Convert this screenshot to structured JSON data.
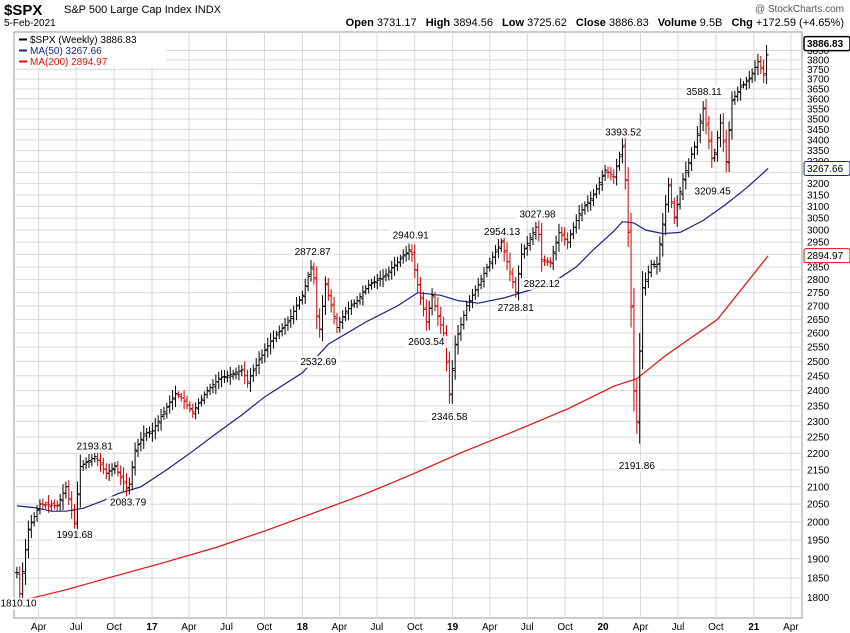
{
  "header": {
    "symbol": "$SPX",
    "description": "S&P 500 Large Cap Index",
    "exchange": "INDX",
    "watermark": "@ StockCharts.com",
    "date": "5-Feb-2021",
    "open_label": "Open",
    "open": "3731.17",
    "high_label": "High",
    "high": "3894.56",
    "low_label": "Low",
    "low": "3725.62",
    "close_label": "Close",
    "close": "3886.83",
    "volume_label": "Volume",
    "volume": "9.5B",
    "chg_label": "Chg",
    "chg": "+172.59 (+4.65%)"
  },
  "colors": {
    "price_bar": "#000000",
    "down_bar": "#cc0000",
    "ma50": "#1a237e",
    "ma200": "#e01010",
    "grid": "#d8d8d8",
    "last_price_tag": "#000000"
  },
  "chart_data": {
    "type": "line",
    "legend": [
      {
        "label": "$SPX (Weekly) 3886.83",
        "color": "#000000"
      },
      {
        "label": "MA(50) 3267.66",
        "color": "#1a237e"
      },
      {
        "label": "MA(200) 2894.97",
        "color": "#e01010"
      }
    ],
    "y_axis": {
      "side": "right",
      "scale": "log",
      "min": 1750,
      "max": 3950,
      "ticks": [
        1800,
        1850,
        1900,
        1950,
        2000,
        2050,
        2100,
        2150,
        2200,
        2250,
        2300,
        2350,
        2400,
        2450,
        2500,
        2550,
        2600,
        2650,
        2700,
        2750,
        2800,
        2850,
        2900,
        2950,
        3000,
        3050,
        3100,
        3150,
        3200,
        3250,
        3300,
        3350,
        3400,
        3450,
        3500,
        3550,
        3600,
        3650,
        3700,
        3750,
        3800,
        3850
      ]
    },
    "x_axis": {
      "labels": [
        "Apr",
        "Jul",
        "Oct",
        "17",
        "Apr",
        "Jul",
        "Oct",
        "18",
        "Apr",
        "Jul",
        "Oct",
        "19",
        "Apr",
        "Jul",
        "Oct",
        "20",
        "Apr",
        "Jul",
        "Oct",
        "21",
        "Apr"
      ],
      "label_dates": [
        "2016-04-01",
        "2016-07-01",
        "2016-10-01",
        "2017-01-01",
        "2017-04-01",
        "2017-07-01",
        "2017-10-01",
        "2018-01-01",
        "2018-04-01",
        "2018-07-01",
        "2018-10-01",
        "2019-01-01",
        "2019-04-01",
        "2019-07-01",
        "2019-10-01",
        "2020-01-01",
        "2020-04-01",
        "2020-07-01",
        "2020-10-01",
        "2021-01-01",
        "2021-04-01"
      ],
      "range": [
        "2016-02-01",
        "2021-04-28"
      ]
    },
    "value_tags": [
      {
        "label": "3886.83",
        "value": 3886.83,
        "style": "last"
      },
      {
        "label": "3267.66",
        "value": 3267.66,
        "style": "ma50"
      },
      {
        "label": "2894.97",
        "value": 2894.97,
        "style": "ma200"
      }
    ],
    "annotations": [
      {
        "label": "1810.10",
        "date": "2016-02-12",
        "value": 1810.1,
        "pos": "below"
      },
      {
        "label": "1991.68",
        "date": "2016-06-27",
        "value": 1991.68,
        "pos": "below"
      },
      {
        "label": "2193.81",
        "date": "2016-08-15",
        "value": 2193.81,
        "pos": "above"
      },
      {
        "label": "2083.79",
        "date": "2016-11-04",
        "value": 2083.79,
        "pos": "below"
      },
      {
        "label": "2872.87",
        "date": "2018-01-26",
        "value": 2872.87,
        "pos": "above"
      },
      {
        "label": "2532.69",
        "date": "2018-02-09",
        "value": 2532.69,
        "pos": "below"
      },
      {
        "label": "2940.91",
        "date": "2018-09-21",
        "value": 2940.91,
        "pos": "above"
      },
      {
        "label": "2603.54",
        "date": "2018-10-29",
        "value": 2603.54,
        "pos": "below"
      },
      {
        "label": "2346.58",
        "date": "2018-12-24",
        "value": 2346.58,
        "pos": "below"
      },
      {
        "label": "2954.13",
        "date": "2019-05-01",
        "value": 2954.13,
        "pos": "above"
      },
      {
        "label": "2728.81",
        "date": "2019-06-03",
        "value": 2728.81,
        "pos": "below"
      },
      {
        "label": "3027.98",
        "date": "2019-07-26",
        "value": 3027.98,
        "pos": "above"
      },
      {
        "label": "2822.12",
        "date": "2019-08-05",
        "value": 2822.12,
        "pos": "below"
      },
      {
        "label": "3393.52",
        "date": "2020-02-19",
        "value": 3393.52,
        "pos": "above"
      },
      {
        "label": "2191.86",
        "date": "2020-03-23",
        "value": 2191.86,
        "pos": "below"
      },
      {
        "label": "3588.11",
        "date": "2020-09-02",
        "value": 3588.11,
        "pos": "above"
      },
      {
        "label": "3209.45",
        "date": "2020-09-23",
        "value": 3209.45,
        "pos": "below"
      }
    ],
    "price_path": [
      [
        "2016-02-08",
        1864
      ],
      [
        "2016-02-15",
        1810
      ],
      [
        "2016-03-07",
        1980
      ],
      [
        "2016-04-04",
        2050
      ],
      [
        "2016-05-16",
        2045
      ],
      [
        "2016-06-06",
        2100
      ],
      [
        "2016-06-27",
        2000
      ],
      [
        "2016-07-11",
        2160
      ],
      [
        "2016-08-15",
        2190
      ],
      [
        "2016-09-12",
        2140
      ],
      [
        "2016-10-03",
        2160
      ],
      [
        "2016-11-04",
        2085
      ],
      [
        "2016-11-21",
        2210
      ],
      [
        "2016-12-12",
        2260
      ],
      [
        "2017-01-02",
        2270
      ],
      [
        "2017-03-01",
        2395
      ],
      [
        "2017-04-10",
        2330
      ],
      [
        "2017-05-15",
        2400
      ],
      [
        "2017-06-12",
        2440
      ],
      [
        "2017-08-07",
        2470
      ],
      [
        "2017-08-21",
        2430
      ],
      [
        "2017-09-18",
        2505
      ],
      [
        "2017-10-16",
        2570
      ],
      [
        "2017-11-27",
        2640
      ],
      [
        "2018-01-01",
        2740
      ],
      [
        "2018-01-26",
        2870
      ],
      [
        "2018-02-09",
        2580
      ],
      [
        "2018-02-26",
        2780
      ],
      [
        "2018-03-26",
        2620
      ],
      [
        "2018-04-16",
        2680
      ],
      [
        "2018-05-14",
        2720
      ],
      [
        "2018-06-11",
        2780
      ],
      [
        "2018-07-16",
        2810
      ],
      [
        "2018-08-20",
        2870
      ],
      [
        "2018-09-21",
        2925
      ],
      [
        "2018-10-08",
        2780
      ],
      [
        "2018-10-29",
        2640
      ],
      [
        "2018-11-12",
        2740
      ],
      [
        "2018-11-26",
        2660
      ],
      [
        "2018-12-10",
        2600
      ],
      [
        "2018-12-24",
        2390
      ],
      [
        "2019-01-07",
        2560
      ],
      [
        "2019-02-04",
        2700
      ],
      [
        "2019-03-04",
        2780
      ],
      [
        "2019-04-01",
        2870
      ],
      [
        "2019-04-29",
        2950
      ],
      [
        "2019-06-03",
        2750
      ],
      [
        "2019-06-17",
        2900
      ],
      [
        "2019-07-26",
        3025
      ],
      [
        "2019-08-05",
        2880
      ],
      [
        "2019-08-26",
        2870
      ],
      [
        "2019-09-16",
        2990
      ],
      [
        "2019-10-07",
        2950
      ],
      [
        "2019-11-04",
        3070
      ],
      [
        "2019-12-09",
        3150
      ],
      [
        "2020-01-06",
        3260
      ],
      [
        "2020-01-27",
        3230
      ],
      [
        "2020-02-19",
        3380
      ],
      [
        "2020-03-02",
        2990
      ],
      [
        "2020-03-16",
        2400
      ],
      [
        "2020-03-23",
        2300
      ],
      [
        "2020-04-06",
        2770
      ],
      [
        "2020-04-27",
        2860
      ],
      [
        "2020-05-11",
        2860
      ],
      [
        "2020-06-08",
        3190
      ],
      [
        "2020-06-22",
        3050
      ],
      [
        "2020-07-13",
        3220
      ],
      [
        "2020-08-10",
        3370
      ],
      [
        "2020-08-31",
        3550
      ],
      [
        "2020-09-23",
        3290
      ],
      [
        "2020-10-12",
        3480
      ],
      [
        "2020-10-26",
        3300
      ],
      [
        "2020-11-09",
        3590
      ],
      [
        "2020-11-30",
        3660
      ],
      [
        "2020-12-21",
        3700
      ],
      [
        "2021-01-11",
        3790
      ],
      [
        "2021-01-25",
        3720
      ],
      [
        "2021-02-05",
        3886.83
      ]
    ],
    "ma50_path": [
      [
        "2016-02-08",
        2045
      ],
      [
        "2016-03-21",
        2040
      ],
      [
        "2016-05-02",
        2030
      ],
      [
        "2016-06-06",
        2030
      ],
      [
        "2016-07-18",
        2038
      ],
      [
        "2016-09-05",
        2060
      ],
      [
        "2016-10-10",
        2080
      ],
      [
        "2016-12-05",
        2100
      ],
      [
        "2017-02-06",
        2150
      ],
      [
        "2017-04-03",
        2200
      ],
      [
        "2017-06-05",
        2260
      ],
      [
        "2017-08-07",
        2320
      ],
      [
        "2017-10-02",
        2380
      ],
      [
        "2018-01-01",
        2460
      ],
      [
        "2018-03-05",
        2560
      ],
      [
        "2018-06-04",
        2640
      ],
      [
        "2018-08-20",
        2700
      ],
      [
        "2018-10-08",
        2750
      ],
      [
        "2018-12-03",
        2740
      ],
      [
        "2019-01-14",
        2720
      ],
      [
        "2019-03-04",
        2710
      ],
      [
        "2019-05-06",
        2730
      ],
      [
        "2019-07-08",
        2760
      ],
      [
        "2019-09-02",
        2790
      ],
      [
        "2019-10-28",
        2850
      ],
      [
        "2019-12-09",
        2920
      ],
      [
        "2020-01-27",
        2995
      ],
      [
        "2020-02-17",
        3035
      ],
      [
        "2020-03-16",
        3030
      ],
      [
        "2020-04-13",
        3000
      ],
      [
        "2020-05-25",
        2985
      ],
      [
        "2020-07-06",
        2990
      ],
      [
        "2020-08-31",
        3040
      ],
      [
        "2020-10-26",
        3110
      ],
      [
        "2020-12-14",
        3180
      ],
      [
        "2021-02-05",
        3267.66
      ]
    ],
    "ma200_path": [
      [
        "2016-02-08",
        1790
      ],
      [
        "2016-06-06",
        1820
      ],
      [
        "2016-10-03",
        1855
      ],
      [
        "2017-01-30",
        1890
      ],
      [
        "2017-06-05",
        1930
      ],
      [
        "2017-10-02",
        1975
      ],
      [
        "2018-01-29",
        2025
      ],
      [
        "2018-06-04",
        2080
      ],
      [
        "2018-10-01",
        2140
      ],
      [
        "2019-01-28",
        2205
      ],
      [
        "2019-06-03",
        2270
      ],
      [
        "2019-10-07",
        2340
      ],
      [
        "2020-01-27",
        2415
      ],
      [
        "2020-03-23",
        2440
      ],
      [
        "2020-06-01",
        2520
      ],
      [
        "2020-10-05",
        2650
      ],
      [
        "2021-02-05",
        2894.97
      ]
    ]
  }
}
